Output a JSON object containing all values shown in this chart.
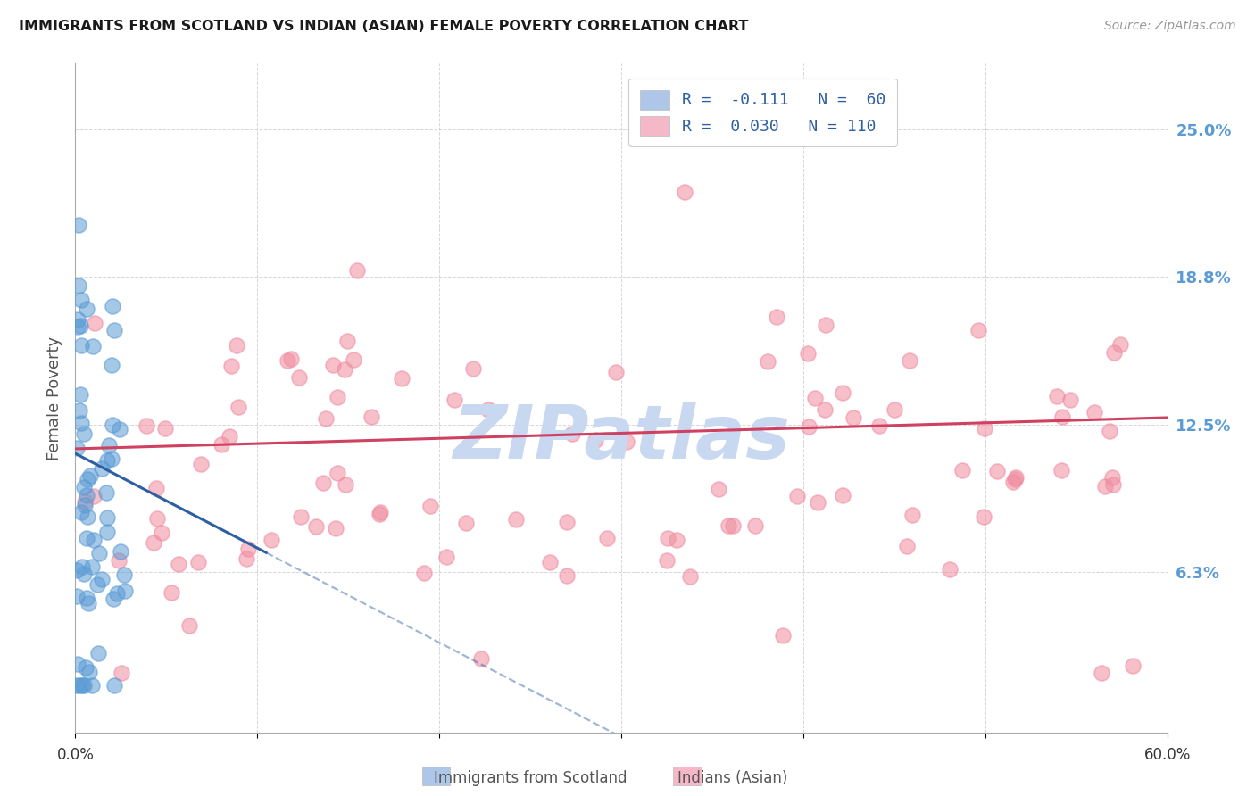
{
  "title": "IMMIGRANTS FROM SCOTLAND VS INDIAN (ASIAN) FEMALE POVERTY CORRELATION CHART",
  "source": "Source: ZipAtlas.com",
  "ylabel": "Female Poverty",
  "y_ticks": [
    "6.3%",
    "12.5%",
    "18.8%",
    "25.0%"
  ],
  "y_tick_vals": [
    0.063,
    0.125,
    0.188,
    0.25
  ],
  "xlim": [
    0.0,
    0.6
  ],
  "ylim": [
    -0.005,
    0.278
  ],
  "scotland_color": "#5b9bd5",
  "indian_color": "#f08ca0",
  "scotland_line_color": "#2e5fa3",
  "indian_line_color": "#d04060",
  "legend_scot_face": "#aec6e8",
  "legend_ind_face": "#f4b8c8",
  "watermark": "ZIPatlas",
  "watermark_color": "#c8d8f0",
  "background_color": "#ffffff",
  "grid_color": "#cccccc",
  "title_color": "#1a1a1a",
  "source_color": "#999999",
  "ytick_color": "#5b9bd5",
  "legend_text_color": "#2e5fa3",
  "bottom_label_color": "#555555"
}
